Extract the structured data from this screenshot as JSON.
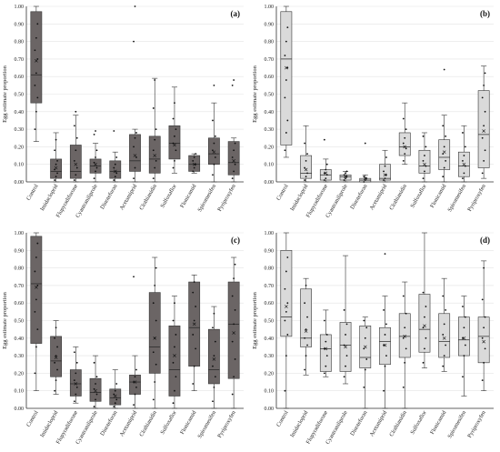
{
  "chart_data": [
    {
      "panel": "(a)",
      "type": "box",
      "ylabel": "Egg estimate proportion",
      "ylim": [
        0,
        1
      ],
      "yticks": [
        "0.00",
        "0.10",
        "0.20",
        "0.30",
        "0.40",
        "0.50",
        "0.60",
        "0.70",
        "0.80",
        "0.90",
        "1.00"
      ],
      "box_color": "#6b6565",
      "categories": [
        "Control",
        "Imidacloprid",
        "Flupyradifurone",
        "Cyantraniliprole",
        "Dinotefuran",
        "Acetamiprid",
        "Clothianidin",
        "Sulfoxaflor",
        "Flonicamid",
        "Spiromesifen",
        "Pyriproxyfen"
      ],
      "boxes": [
        {
          "min": 0.23,
          "q1": 0.45,
          "median": 0.61,
          "mean": 0.69,
          "q3": 0.97,
          "max": 1.0,
          "points": [
            0.3,
            0.4,
            0.48,
            0.55,
            0.62,
            0.7,
            0.75,
            0.82,
            0.9
          ]
        },
        {
          "min": 0.0,
          "q1": 0.02,
          "median": 0.06,
          "mean": 0.08,
          "q3": 0.13,
          "max": 0.28,
          "points": [
            0.01,
            0.03,
            0.05,
            0.07,
            0.1,
            0.12,
            0.18,
            0.24
          ]
        },
        {
          "min": 0.0,
          "q1": 0.02,
          "median": 0.06,
          "mean": 0.1,
          "q3": 0.21,
          "max": 0.38,
          "points": [
            0.01,
            0.04,
            0.08,
            0.12,
            0.18,
            0.25,
            0.32,
            0.4
          ]
        },
        {
          "min": 0.0,
          "q1": 0.05,
          "median": 0.09,
          "mean": 0.1,
          "q3": 0.13,
          "max": 0.22,
          "points": [
            0.02,
            0.06,
            0.08,
            0.11,
            0.14,
            0.18,
            0.27,
            0.29
          ]
        },
        {
          "min": 0.0,
          "q1": 0.02,
          "median": 0.06,
          "mean": 0.06,
          "q3": 0.12,
          "max": 0.17,
          "points": [
            0.01,
            0.03,
            0.05,
            0.08,
            0.1,
            0.14,
            0.29
          ]
        },
        {
          "min": 0.0,
          "q1": 0.06,
          "median": 0.12,
          "mean": 0.15,
          "q3": 0.27,
          "max": 0.3,
          "points": [
            0.02,
            0.08,
            0.14,
            0.2,
            0.25,
            0.28,
            0.8,
            1.0
          ]
        },
        {
          "min": 0.0,
          "q1": 0.05,
          "median": 0.13,
          "mean": 0.15,
          "q3": 0.26,
          "max": 0.59,
          "points": [
            0.02,
            0.08,
            0.12,
            0.18,
            0.24,
            0.3,
            0.42,
            0.58
          ]
        },
        {
          "min": 0.05,
          "q1": 0.13,
          "median": 0.22,
          "mean": 0.21,
          "q3": 0.32,
          "max": 0.54,
          "points": [
            0.08,
            0.12,
            0.18,
            0.22,
            0.26,
            0.3,
            0.36,
            0.45
          ]
        },
        {
          "min": 0.05,
          "q1": 0.06,
          "median": 0.1,
          "mean": 0.1,
          "q3": 0.15,
          "max": 0.16,
          "points": [
            0.06,
            0.08,
            0.1,
            0.12,
            0.14,
            0.16
          ]
        },
        {
          "min": 0.0,
          "q1": 0.1,
          "median": 0.16,
          "mean": 0.17,
          "q3": 0.25,
          "max": 0.45,
          "points": [
            0.04,
            0.1,
            0.14,
            0.18,
            0.22,
            0.26,
            0.35,
            0.55
          ]
        },
        {
          "min": 0.0,
          "q1": 0.04,
          "median": 0.11,
          "mean": 0.12,
          "q3": 0.23,
          "max": 0.25,
          "points": [
            0.02,
            0.06,
            0.1,
            0.14,
            0.18,
            0.22,
            0.55,
            0.58
          ]
        }
      ]
    },
    {
      "panel": "(b)",
      "type": "box",
      "ylabel": "Egg estimate proportion",
      "ylim": [
        0,
        1
      ],
      "yticks": [
        "0.00",
        "0.10",
        "0.20",
        "0.30",
        "0.40",
        "0.50",
        "0.60",
        "0.70",
        "0.80",
        "0.90",
        "1.00"
      ],
      "box_color": "#dadada",
      "categories": [
        "Control",
        "Imidacloprid",
        "Flupyradifurone",
        "Cyantraniliprole",
        "Dinotefuran",
        "Acetamiprid",
        "Clothianidin",
        "Sulfoxaflor",
        "Flonicamid",
        "Spiromesifen",
        "Pyriproxyfen"
      ],
      "boxes": [
        {
          "min": 0.14,
          "q1": 0.21,
          "median": 0.7,
          "mean": 0.65,
          "q3": 0.97,
          "max": 1.0,
          "points": [
            0.18,
            0.28,
            0.35,
            0.48,
            0.58,
            0.65,
            0.72,
            0.8,
            0.88
          ]
        },
        {
          "min": 0.0,
          "q1": 0.02,
          "median": 0.05,
          "mean": 0.07,
          "q3": 0.15,
          "max": 0.32,
          "points": [
            0.01,
            0.03,
            0.05,
            0.08,
            0.12,
            0.16,
            0.22
          ]
        },
        {
          "min": 0.0,
          "q1": 0.01,
          "median": 0.04,
          "mean": 0.05,
          "q3": 0.07,
          "max": 0.13,
          "points": [
            0.01,
            0.02,
            0.04,
            0.05,
            0.07,
            0.1,
            0.24
          ]
        },
        {
          "min": 0.0,
          "q1": 0.01,
          "median": 0.03,
          "mean": 0.03,
          "q3": 0.04,
          "max": 0.06,
          "points": [
            0.01,
            0.02,
            0.03,
            0.04,
            0.05,
            0.06
          ]
        },
        {
          "min": 0.0,
          "q1": 0.0,
          "median": 0.01,
          "mean": 0.02,
          "q3": 0.02,
          "max": 0.04,
          "points": [
            0.0,
            0.01,
            0.02,
            0.03,
            0.22
          ]
        },
        {
          "min": 0.0,
          "q1": 0.01,
          "median": 0.02,
          "mean": 0.04,
          "q3": 0.1,
          "max": 0.18,
          "points": [
            0.01,
            0.02,
            0.04,
            0.06,
            0.09,
            0.14
          ]
        },
        {
          "min": 0.1,
          "q1": 0.15,
          "median": 0.2,
          "mean": 0.2,
          "q3": 0.28,
          "max": 0.45,
          "points": [
            0.12,
            0.16,
            0.19,
            0.22,
            0.25,
            0.3,
            0.36
          ]
        },
        {
          "min": 0.0,
          "q1": 0.05,
          "median": 0.09,
          "mean": 0.1,
          "q3": 0.18,
          "max": 0.28,
          "points": [
            0.02,
            0.06,
            0.09,
            0.12,
            0.15,
            0.2,
            0.26
          ]
        },
        {
          "min": 0.0,
          "q1": 0.07,
          "median": 0.14,
          "mean": 0.17,
          "q3": 0.24,
          "max": 0.38,
          "points": [
            0.03,
            0.08,
            0.12,
            0.16,
            0.2,
            0.26,
            0.32,
            0.64
          ]
        },
        {
          "min": 0.0,
          "q1": 0.03,
          "median": 0.09,
          "mean": 0.1,
          "q3": 0.17,
          "max": 0.32,
          "points": [
            0.02,
            0.05,
            0.09,
            0.12,
            0.15,
            0.2,
            0.28
          ]
        },
        {
          "min": 0.02,
          "q1": 0.08,
          "median": 0.27,
          "mean": 0.29,
          "q3": 0.52,
          "max": 0.66,
          "points": [
            0.05,
            0.12,
            0.18,
            0.25,
            0.32,
            0.4,
            0.48,
            0.55,
            0.62
          ]
        }
      ]
    },
    {
      "panel": "(c)",
      "type": "box",
      "ylabel": "Egg estimate proportion",
      "ylim": [
        0,
        1
      ],
      "yticks": [
        "0.00",
        "0.10",
        "0.20",
        "0.30",
        "0.40",
        "0.50",
        "0.60",
        "0.70",
        "0.80",
        "0.90",
        "1.00"
      ],
      "box_color": "#6b6565",
      "categories": [
        "Control",
        "Imidacloprid",
        "Flupyradifurone",
        "Cyantraniliprole",
        "Dinotefuran",
        "Acetamiprid",
        "Clothianidin",
        "Sulfoxaflor",
        "Flonicamid",
        "Spiromesifen",
        "Pyriproxyfen"
      ],
      "boxes": [
        {
          "min": 0.1,
          "q1": 0.37,
          "median": 0.71,
          "mean": 0.69,
          "q3": 0.98,
          "max": 1.0,
          "points": [
            0.2,
            0.35,
            0.45,
            0.55,
            0.62,
            0.7,
            0.78,
            0.86,
            0.94
          ]
        },
        {
          "min": 0.08,
          "q1": 0.18,
          "median": 0.27,
          "mean": 0.29,
          "q3": 0.41,
          "max": 0.5,
          "points": [
            0.1,
            0.16,
            0.22,
            0.26,
            0.3,
            0.35,
            0.4,
            0.46
          ]
        },
        {
          "min": 0.03,
          "q1": 0.07,
          "median": 0.14,
          "mean": 0.14,
          "q3": 0.22,
          "max": 0.35,
          "points": [
            0.04,
            0.08,
            0.12,
            0.16,
            0.2,
            0.26,
            0.32
          ]
        },
        {
          "min": 0.0,
          "q1": 0.04,
          "median": 0.09,
          "mean": 0.1,
          "q3": 0.17,
          "max": 0.3,
          "points": [
            0.01,
            0.05,
            0.08,
            0.11,
            0.14,
            0.18,
            0.26
          ]
        },
        {
          "min": 0.0,
          "q1": 0.02,
          "median": 0.06,
          "mean": 0.07,
          "q3": 0.11,
          "max": 0.22,
          "points": [
            0.01,
            0.03,
            0.05,
            0.08,
            0.1,
            0.14
          ]
        },
        {
          "min": 0.0,
          "q1": 0.08,
          "median": 0.15,
          "mean": 0.15,
          "q3": 0.19,
          "max": 0.3,
          "points": [
            0.02,
            0.08,
            0.12,
            0.15,
            0.18,
            0.22,
            0.75
          ]
        },
        {
          "min": 0.0,
          "q1": 0.2,
          "median": 0.35,
          "mean": 0.4,
          "q3": 0.66,
          "max": 0.86,
          "points": [
            0.05,
            0.15,
            0.25,
            0.32,
            0.4,
            0.5,
            0.6,
            0.7,
            0.8
          ]
        },
        {
          "min": 0.0,
          "q1": 0.07,
          "median": 0.22,
          "mean": 0.3,
          "q3": 0.47,
          "max": 0.64,
          "points": [
            0.03,
            0.1,
            0.18,
            0.26,
            0.35,
            0.42,
            0.5,
            0.6
          ]
        },
        {
          "min": 0.1,
          "q1": 0.24,
          "median": 0.46,
          "mean": 0.48,
          "q3": 0.72,
          "max": 0.76,
          "points": [
            0.14,
            0.24,
            0.34,
            0.42,
            0.5,
            0.58,
            0.66,
            0.72
          ]
        },
        {
          "min": 0.0,
          "q1": 0.14,
          "median": 0.22,
          "mean": 0.28,
          "q3": 0.45,
          "max": 0.58,
          "points": [
            0.04,
            0.12,
            0.18,
            0.24,
            0.3,
            0.38,
            0.46,
            0.54
          ]
        },
        {
          "min": 0.0,
          "q1": 0.17,
          "median": 0.48,
          "mean": 0.43,
          "q3": 0.72,
          "max": 0.86,
          "points": [
            0.08,
            0.18,
            0.28,
            0.38,
            0.48,
            0.56,
            0.64,
            0.74,
            0.82
          ]
        }
      ]
    },
    {
      "panel": "(d)",
      "type": "box",
      "ylabel": "Egg estimate proportion",
      "ylim": [
        0,
        1
      ],
      "yticks": [
        "0.00",
        "0.10",
        "0.20",
        "0.30",
        "0.40",
        "0.50",
        "0.60",
        "0.70",
        "0.80",
        "0.90",
        "1.00"
      ],
      "box_color": "#dadada",
      "categories": [
        "Control",
        "Imidacloprid",
        "Flupyradifurone",
        "Cyantraniliprole",
        "Dinotefuran",
        "Acetamiprid",
        "Clothianidin",
        "Sulfoxaflor",
        "Flonicamid",
        "Spiromesifen",
        "Pyriproxyfen"
      ],
      "boxes": [
        {
          "min": 0.0,
          "q1": 0.41,
          "median": 0.52,
          "mean": 0.58,
          "q3": 0.9,
          "max": 1.0,
          "points": [
            0.1,
            0.3,
            0.42,
            0.5,
            0.55,
            0.6,
            0.68,
            0.78,
            0.86
          ]
        },
        {
          "min": 0.19,
          "q1": 0.35,
          "median": 0.4,
          "mean": 0.44,
          "q3": 0.68,
          "max": 0.74,
          "points": [
            0.22,
            0.3,
            0.36,
            0.4,
            0.45,
            0.52,
            0.6,
            0.7
          ]
        },
        {
          "min": 0.18,
          "q1": 0.21,
          "median": 0.34,
          "mean": 0.34,
          "q3": 0.42,
          "max": 0.56,
          "points": [
            0.2,
            0.24,
            0.3,
            0.34,
            0.38,
            0.42,
            0.5
          ]
        },
        {
          "min": 0.14,
          "q1": 0.21,
          "median": 0.36,
          "mean": 0.35,
          "q3": 0.49,
          "max": 0.87,
          "points": [
            0.18,
            0.24,
            0.3,
            0.36,
            0.42,
            0.48,
            0.56
          ]
        },
        {
          "min": 0.0,
          "q1": 0.23,
          "median": 0.29,
          "mean": 0.35,
          "q3": 0.47,
          "max": 0.52,
          "points": [
            0.12,
            0.22,
            0.28,
            0.34,
            0.4,
            0.46,
            0.5
          ]
        },
        {
          "min": 0.0,
          "q1": 0.25,
          "median": 0.38,
          "mean": 0.36,
          "q3": 0.46,
          "max": 0.64,
          "points": [
            0.1,
            0.24,
            0.3,
            0.36,
            0.42,
            0.48,
            0.56,
            0.88
          ]
        },
        {
          "min": 0.0,
          "q1": 0.29,
          "median": 0.41,
          "mean": 0.41,
          "q3": 0.54,
          "max": 0.72,
          "points": [
            0.12,
            0.26,
            0.34,
            0.4,
            0.46,
            0.54,
            0.64
          ]
        },
        {
          "min": 0.23,
          "q1": 0.32,
          "median": 0.45,
          "mean": 0.47,
          "q3": 0.65,
          "max": 1.0,
          "points": [
            0.26,
            0.34,
            0.4,
            0.46,
            0.52,
            0.58,
            0.66
          ]
        },
        {
          "min": 0.21,
          "q1": 0.29,
          "median": 0.38,
          "mean": 0.4,
          "q3": 0.54,
          "max": 0.74,
          "points": [
            0.24,
            0.3,
            0.36,
            0.42,
            0.48,
            0.56,
            0.64
          ]
        },
        {
          "min": 0.07,
          "q1": 0.3,
          "median": 0.39,
          "mean": 0.4,
          "q3": 0.52,
          "max": 0.64,
          "points": [
            0.18,
            0.3,
            0.36,
            0.4,
            0.46,
            0.52,
            0.58
          ]
        },
        {
          "min": 0.1,
          "q1": 0.26,
          "median": 0.41,
          "mean": 0.38,
          "q3": 0.52,
          "max": 0.84,
          "points": [
            0.16,
            0.26,
            0.34,
            0.4,
            0.46,
            0.52,
            0.62,
            0.8
          ]
        }
      ]
    }
  ]
}
